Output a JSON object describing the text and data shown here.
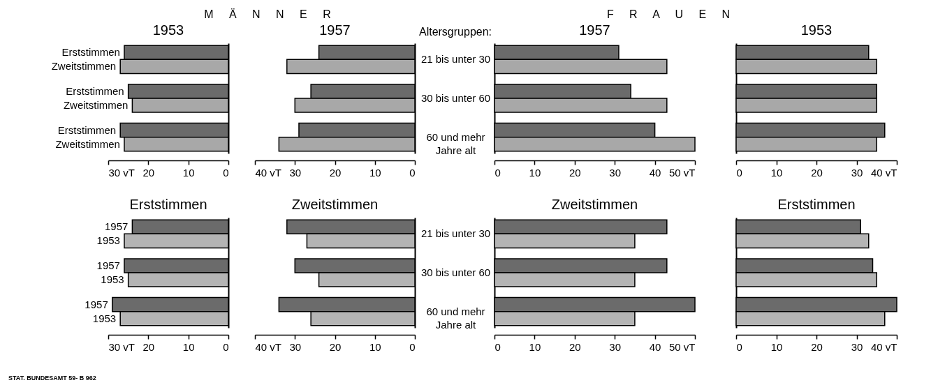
{
  "chart_data": [
    {
      "type": "bar",
      "orientation": "horizontal",
      "title": "1953",
      "annotations": [
        "M Ä N N E R"
      ],
      "categories": [
        null,
        null,
        null
      ],
      "series": [
        {
          "name": "Erststimmen",
          "color": "#6b6b6b",
          "values": [
            26,
            25,
            27
          ]
        },
        {
          "name": "Zweitstimmen",
          "color": "#a8a8a8",
          "values": [
            27,
            24,
            26
          ]
        }
      ],
      "xlim": [
        30,
        0
      ],
      "xticks": [
        {
          "value": 30,
          "label": "30 vT"
        },
        20,
        10,
        0
      ],
      "tick_labels": "x"
    },
    {
      "type": "bar",
      "orientation": "horizontal",
      "title": "1957",
      "categories": [
        null,
        null,
        null
      ],
      "series": [
        {
          "color": "#6b6b6b",
          "values": [
            24,
            26,
            29
          ]
        },
        {
          "color": "#a8a8a8",
          "values": [
            32,
            30,
            34
          ]
        }
      ],
      "xlim": [
        40,
        0
      ],
      "xticks": [
        {
          "value": 40,
          "label": "40 vT"
        },
        30,
        20,
        10,
        0
      ],
      "tick_labels": "x"
    },
    {
      "type": "bar",
      "orientation": "horizontal",
      "title": "1957",
      "ylabel": "Altersgruppen:",
      "annotations": [
        "F R A U E N"
      ],
      "categories": [
        "21 bis unter 30",
        "30 bis unter 60",
        "60 und mehr Jahre alt"
      ],
      "series": [
        {
          "color": "#6b6b6b",
          "values": [
            31,
            34,
            40
          ]
        },
        {
          "color": "#a8a8a8",
          "values": [
            43,
            43,
            50
          ]
        }
      ],
      "xlim": [
        0,
        50
      ],
      "xticks": [
        0,
        10,
        20,
        30,
        40,
        {
          "value": 50,
          "label": "50 vT"
        }
      ]
    },
    {
      "type": "bar",
      "orientation": "horizontal",
      "title": "1953",
      "categories": [
        null,
        null,
        null
      ],
      "series": [
        {
          "color": "#6b6b6b",
          "values": [
            33,
            35,
            37
          ]
        },
        {
          "color": "#a8a8a8",
          "values": [
            35,
            35,
            35
          ]
        }
      ],
      "xlim": [
        0,
        40
      ],
      "xticks": [
        0,
        10,
        20,
        30,
        {
          "value": 40,
          "label": "40 vT"
        }
      ],
      "tick_labels": "x"
    },
    {
      "type": "bar",
      "orientation": "horizontal",
      "title": "Erststimmen",
      "annotations": [
        "STAT. BUNDESAMT 59- B 962"
      ],
      "categories": [
        null,
        null,
        null
      ],
      "series": [
        {
          "name": "1957",
          "color": "#6b6b6b",
          "values": [
            24,
            26,
            29
          ]
        },
        {
          "name": "1953",
          "color": "#b4b4b4",
          "values": [
            26,
            25,
            27
          ]
        }
      ],
      "xlim": [
        30,
        0
      ],
      "xticks": [
        {
          "value": 30,
          "label": "30 vT"
        },
        20,
        10,
        0
      ],
      "tick_labels": "x"
    },
    {
      "type": "bar",
      "orientation": "horizontal",
      "title": "Zweitstimmen",
      "categories": [
        null,
        null,
        null
      ],
      "series": [
        {
          "color": "#6b6b6b",
          "values": [
            32,
            30,
            34
          ]
        },
        {
          "color": "#b4b4b4",
          "values": [
            27,
            24,
            26
          ]
        }
      ],
      "xlim": [
        40,
        0
      ],
      "xticks": [
        {
          "value": 40,
          "label": "40 vT"
        },
        30,
        20,
        10,
        0
      ],
      "tick_labels": "x"
    },
    {
      "type": "bar",
      "orientation": "horizontal",
      "title": "Zweitstimmen",
      "categories": [
        "21 bis unter 30",
        "30 bis unter 60",
        "60 und mehr Jahre alt"
      ],
      "series": [
        {
          "color": "#6b6b6b",
          "values": [
            43,
            43,
            50
          ]
        },
        {
          "color": "#b4b4b4",
          "values": [
            35,
            35,
            35
          ]
        }
      ],
      "xlim": [
        0,
        50
      ],
      "xticks": [
        0,
        10,
        20,
        30,
        40,
        {
          "value": 50,
          "label": "50 vT"
        }
      ]
    },
    {
      "type": "bar",
      "orientation": "horizontal",
      "title": "Erststimmen",
      "categories": [
        null,
        null,
        null
      ],
      "series": [
        {
          "color": "#6b6b6b",
          "values": [
            31,
            34,
            40
          ]
        },
        {
          "color": "#b4b4b4",
          "values": [
            33,
            35,
            37
          ]
        }
      ],
      "xlim": [
        0,
        40
      ],
      "xticks": [
        0,
        10,
        20,
        30,
        {
          "value": 40,
          "label": "40 vT"
        }
      ],
      "tick_labels": "x"
    }
  ]
}
